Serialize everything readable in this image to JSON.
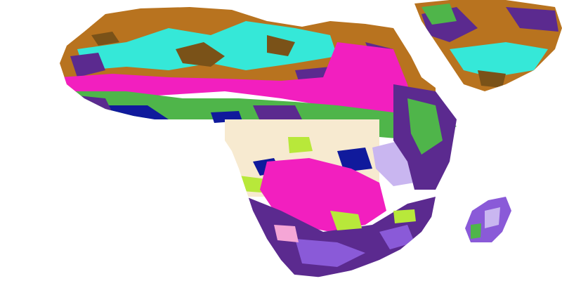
{
  "map": {
    "background": "#ffffff",
    "palette": {
      "brown": "#b8731f",
      "dark_brown": "#7a5218",
      "cyan": "#35e8d8",
      "magenta": "#f21fbf",
      "purple": "#5b2a8f",
      "violet": "#8a5ad8",
      "lavender": "#c9b6f0",
      "dark_blue": "#101a9c",
      "green": "#4fb54a",
      "lime": "#b8e83a",
      "cream": "#f7ead0",
      "pink_light": "#f5a6d6",
      "white": "#ffffff"
    },
    "regions": [
      {
        "name": "sahara-north",
        "color": "brown"
      },
      {
        "name": "sahara-cyan-band",
        "color": "cyan"
      },
      {
        "name": "sahel-magenta-band",
        "color": "magenta"
      },
      {
        "name": "sudan-green-belt",
        "color": "green"
      },
      {
        "name": "central-cream",
        "color": "cream"
      },
      {
        "name": "congo-magenta",
        "color": "magenta"
      },
      {
        "name": "southern-purple",
        "color": "purple"
      },
      {
        "name": "arabia",
        "color": "brown"
      },
      {
        "name": "madagascar",
        "color": "violet"
      }
    ]
  }
}
